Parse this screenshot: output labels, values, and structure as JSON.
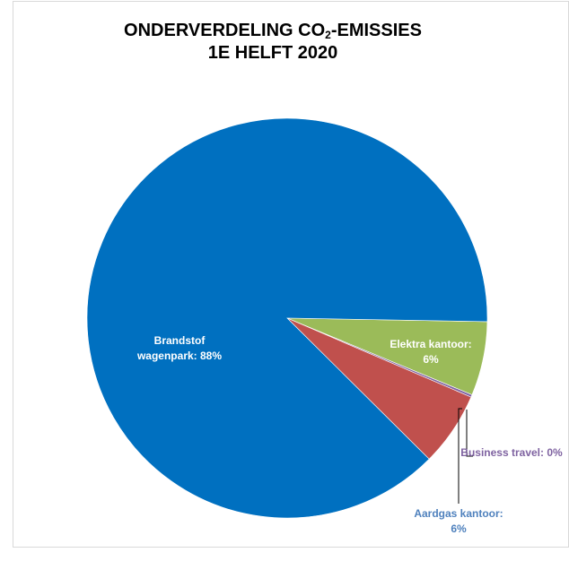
{
  "chart_data": {
    "type": "pie",
    "title_line1_prefix": "ONDERVERDELING CO",
    "title_line1_sub": "2",
    "title_line1_suffix": "-EMISSIES",
    "title_line2": "1E HELFT 2020",
    "slices": [
      {
        "label": "Elektra kantoor",
        "value": 6,
        "display": [
          "Elektra kantoor:",
          "6%"
        ],
        "color": "#9bbb59",
        "label_color": "#ffffff"
      },
      {
        "label": "Business travel",
        "value": 0.2,
        "display": [
          "Business travel: 0%"
        ],
        "color": "#8064a2",
        "label_color": "#7f63a1"
      },
      {
        "label": "Aardgas kantoor",
        "value": 6,
        "display": [
          "Aardgas kantoor:",
          "6%"
        ],
        "color": "#c0504d",
        "label_color": "#4f81bd"
      },
      {
        "label": "Brandstof wagenpark",
        "value": 88,
        "display": [
          "Brandstof",
          "wagenpark: 88%"
        ],
        "color": "#0070c0",
        "label_color": "#ffffff"
      }
    ]
  }
}
